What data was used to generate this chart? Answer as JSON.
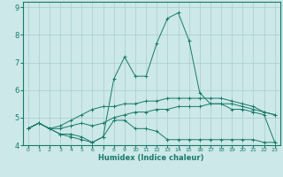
{
  "title": "",
  "xlabel": "Humidex (Indice chaleur)",
  "ylabel": "",
  "bg_color": "#cce8e8",
  "grid_color": "#aacccc",
  "line_color": "#1a7a6a",
  "xlim": [
    -0.5,
    23.5
  ],
  "ylim": [
    4.0,
    9.2
  ],
  "yticks": [
    4,
    5,
    6,
    7,
    8,
    9
  ],
  "xticks": [
    0,
    1,
    2,
    3,
    4,
    5,
    6,
    7,
    8,
    9,
    10,
    11,
    12,
    13,
    14,
    15,
    16,
    17,
    18,
    19,
    20,
    21,
    22,
    23
  ],
  "series": [
    [
      4.6,
      4.8,
      4.6,
      4.4,
      4.4,
      4.3,
      4.1,
      4.3,
      4.9,
      4.9,
      4.6,
      4.6,
      4.5,
      4.2,
      4.2,
      4.2,
      4.2,
      4.2,
      4.2,
      4.2,
      4.2,
      4.2,
      4.1,
      4.1
    ],
    [
      4.6,
      4.8,
      4.6,
      4.6,
      4.7,
      4.8,
      4.7,
      4.8,
      5.0,
      5.1,
      5.2,
      5.2,
      5.3,
      5.3,
      5.4,
      5.4,
      5.4,
      5.5,
      5.5,
      5.5,
      5.4,
      5.3,
      5.2,
      5.1
    ],
    [
      4.6,
      4.8,
      4.6,
      4.7,
      4.9,
      5.1,
      5.3,
      5.4,
      5.4,
      5.5,
      5.5,
      5.6,
      5.6,
      5.7,
      5.7,
      5.7,
      5.7,
      5.7,
      5.7,
      5.6,
      5.5,
      5.4,
      5.2,
      5.1
    ],
    [
      4.6,
      4.8,
      4.6,
      4.4,
      4.3,
      4.2,
      4.1,
      4.3,
      6.4,
      7.2,
      6.5,
      6.5,
      7.7,
      8.6,
      8.8,
      7.8,
      5.9,
      5.5,
      5.5,
      5.3,
      5.3,
      5.2,
      5.1,
      4.1
    ]
  ]
}
